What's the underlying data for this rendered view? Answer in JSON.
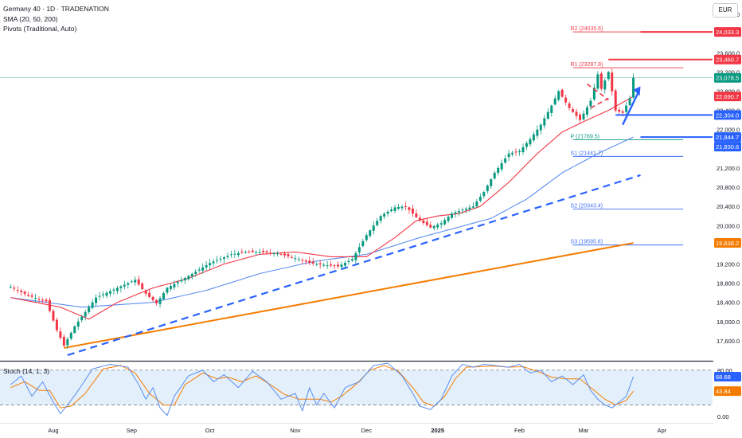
{
  "legend": {
    "symbol": "Germany 40 · 1D · TRADENATION",
    "sma": "SMA (20, 50, 200)",
    "pivots": "Pivots (Traditional, Auto)"
  },
  "currency_button": "EUR",
  "colors": {
    "up": "#089981",
    "down": "#f23645",
    "sma20": "#f23645",
    "sma50": "#5b8def",
    "sma200": "#f57c00",
    "trend": "#2962ff",
    "pivot_blue": "#3d6ef5",
    "stoch_k": "#5b8def",
    "stoch_d": "#f57c00",
    "stoch_band": "#e3f0fb"
  },
  "chart_data": [
    {
      "type": "candlestick",
      "title": "",
      "ylim": [
        17200,
        24700
      ],
      "x_ticks": [
        "Aug",
        "Sep",
        "Oct",
        "Nov",
        "Dec",
        "2025",
        "Feb",
        "Mar",
        "Apr"
      ],
      "x_tick_index": [
        12,
        34,
        56,
        80,
        100,
        120,
        143,
        161,
        183
      ],
      "y_ticks": [
        17600,
        18000,
        18400,
        18800,
        19200,
        19600,
        20000,
        20400,
        20800,
        21200,
        21600,
        22000,
        22400,
        22800,
        23200,
        23600,
        24000,
        24400
      ],
      "y_tick_labels": [
        "17,600.0",
        "18,000.0",
        "18,400.0",
        "18,800.0",
        "19,200.0",
        "19,600.0",
        "20,000.0",
        "20,400.0",
        "20,800.0",
        "21,200.0",
        "21,600.0",
        "22,000.0",
        "22,400.0",
        "22,800.0",
        "23,200.0",
        "23,600.0",
        "24,000.0",
        "24,400.0"
      ],
      "anchors": [
        [
          0,
          18720
        ],
        [
          5,
          18540
        ],
        [
          10,
          18420
        ],
        [
          13,
          17820
        ],
        [
          15,
          17500
        ],
        [
          18,
          17900
        ],
        [
          24,
          18500
        ],
        [
          30,
          18700
        ],
        [
          35,
          18870
        ],
        [
          38,
          18580
        ],
        [
          41,
          18380
        ],
        [
          44,
          18700
        ],
        [
          50,
          18950
        ],
        [
          56,
          19220
        ],
        [
          62,
          19400
        ],
        [
          66,
          19450
        ],
        [
          70,
          19450
        ],
        [
          75,
          19420
        ],
        [
          80,
          19320
        ],
        [
          84,
          19220
        ],
        [
          88,
          19180
        ],
        [
          92,
          19150
        ],
        [
          96,
          19300
        ],
        [
          100,
          19800
        ],
        [
          104,
          20200
        ],
        [
          108,
          20380
        ],
        [
          111,
          20400
        ],
        [
          115,
          20100
        ],
        [
          118,
          19960
        ],
        [
          121,
          20050
        ],
        [
          124,
          20250
        ],
        [
          127,
          20330
        ],
        [
          130,
          20400
        ],
        [
          133,
          20700
        ],
        [
          136,
          21100
        ],
        [
          140,
          21500
        ],
        [
          143,
          21550
        ],
        [
          146,
          21800
        ],
        [
          149,
          22100
        ],
        [
          152,
          22500
        ],
        [
          154,
          22800
        ],
        [
          157,
          22450
        ],
        [
          160,
          22200
        ],
        [
          163,
          22600
        ],
        [
          165,
          23150
        ],
        [
          166,
          22850
        ],
        [
          168,
          23200
        ],
        [
          170,
          22400
        ],
        [
          172,
          22350
        ],
        [
          174,
          22650
        ],
        [
          175,
          23080
        ]
      ],
      "last_index": 175,
      "sma20_anchors": [
        [
          0,
          18500
        ],
        [
          14,
          18300
        ],
        [
          22,
          18050
        ],
        [
          30,
          18400
        ],
        [
          40,
          18700
        ],
        [
          50,
          18900
        ],
        [
          60,
          19200
        ],
        [
          70,
          19400
        ],
        [
          80,
          19450
        ],
        [
          90,
          19350
        ],
        [
          100,
          19350
        ],
        [
          108,
          19750
        ],
        [
          114,
          20100
        ],
        [
          120,
          20200
        ],
        [
          126,
          20250
        ],
        [
          132,
          20400
        ],
        [
          140,
          20900
        ],
        [
          148,
          21500
        ],
        [
          155,
          21950
        ],
        [
          162,
          22200
        ],
        [
          168,
          22400
        ],
        [
          175,
          22690
        ]
      ],
      "sma50_anchors": [
        [
          0,
          18500
        ],
        [
          20,
          18300
        ],
        [
          40,
          18400
        ],
        [
          55,
          18650
        ],
        [
          70,
          19000
        ],
        [
          85,
          19250
        ],
        [
          100,
          19400
        ],
        [
          115,
          19750
        ],
        [
          125,
          19950
        ],
        [
          135,
          20150
        ],
        [
          145,
          20550
        ],
        [
          155,
          21100
        ],
        [
          165,
          21500
        ],
        [
          175,
          21844.7
        ]
      ],
      "sma200": {
        "start": [
          15,
          17450
        ],
        "end": [
          175,
          19638.2
        ]
      },
      "trendline": {
        "start": [
          16,
          17300
        ],
        "end": [
          177,
          21050
        ]
      },
      "pivots": {
        "start_index": 158,
        "end_index": 189,
        "levels": [
          {
            "name": "R2",
            "label": "R2 (24035.6)",
            "value": 24035.6,
            "color": "#f23645"
          },
          {
            "name": "R1",
            "label": "R1 (23287.8)",
            "value": 23287.8,
            "color": "#f23645"
          },
          {
            "name": "P",
            "label": "P (21789.5)",
            "value": 21789.5,
            "color": "#089981"
          },
          {
            "name": "S1",
            "label": "S1 (21441.7)",
            "value": 21441.7,
            "color": "#3d6ef5"
          },
          {
            "name": "S2",
            "label": "S2 (20343.4)",
            "value": 20343.4,
            "color": "#3d6ef5"
          },
          {
            "name": "S3",
            "label": "S3 (19595.6)",
            "value": 19595.6,
            "color": "#3d6ef5"
          }
        ]
      },
      "horizontal_lines": [
        {
          "value": 24033.3,
          "color": "#f23645",
          "start_index": 177
        },
        {
          "value": 23460.7,
          "color": "#f23645",
          "start_index": 168
        },
        {
          "value": 22304.0,
          "color": "#2962ff",
          "start_index": 170
        },
        {
          "value": 21844.7,
          "color": "#2962ff",
          "start_index": 177
        }
      ],
      "current_price_line": 23078.5,
      "price_labels": [
        {
          "text": "24,033.3",
          "value": 24033.3,
          "color": "#f23645"
        },
        {
          "text": "23,460.7",
          "value": 23460.7,
          "color": "#f23645"
        },
        {
          "text": "23,078.5",
          "value": 23078.5,
          "color": "#089981"
        },
        {
          "text": "22,690.7",
          "value": 22690.7,
          "color": "#f23645"
        },
        {
          "text": "22,304.0",
          "value": 22304.0,
          "color": "#2962ff"
        },
        {
          "text": "21,844.7",
          "value": 21844.7,
          "color": "#2962ff"
        },
        {
          "text": "21,830.6",
          "value": 21830.6,
          "color": "#2962ff"
        },
        {
          "text": "19,638.2",
          "value": 19638.2,
          "color": "#f57c00"
        }
      ],
      "pattern": {
        "upper": [
          [
            162,
            22950
          ],
          [
            168,
            22620
          ]
        ],
        "lower": [
          [
            163,
            22450
          ],
          [
            168,
            22650
          ]
        ],
        "arrow_from": [
          172,
          22100
        ],
        "arrow_to": [
          177,
          22900
        ]
      }
    },
    {
      "type": "line",
      "title": "Stoch (14, 1, 3)",
      "ylim": [
        -8,
        92
      ],
      "y_ticks": [
        0,
        80
      ],
      "y_tick_labels": [
        "0.00",
        "80.00"
      ],
      "band": [
        20,
        80
      ],
      "k_anchors": [
        [
          0,
          55
        ],
        [
          3,
          70
        ],
        [
          6,
          35
        ],
        [
          9,
          60
        ],
        [
          12,
          25
        ],
        [
          14,
          5
        ],
        [
          16,
          20
        ],
        [
          19,
          45
        ],
        [
          23,
          82
        ],
        [
          28,
          90
        ],
        [
          33,
          85
        ],
        [
          36,
          55
        ],
        [
          38,
          30
        ],
        [
          40,
          50
        ],
        [
          42,
          15
        ],
        [
          44,
          2
        ],
        [
          46,
          35
        ],
        [
          50,
          70
        ],
        [
          54,
          80
        ],
        [
          57,
          60
        ],
        [
          60,
          72
        ],
        [
          64,
          50
        ],
        [
          68,
          78
        ],
        [
          72,
          60
        ],
        [
          76,
          30
        ],
        [
          80,
          40
        ],
        [
          82,
          10
        ],
        [
          84,
          50
        ],
        [
          86,
          20
        ],
        [
          88,
          40
        ],
        [
          91,
          15
        ],
        [
          94,
          50
        ],
        [
          98,
          60
        ],
        [
          102,
          88
        ],
        [
          106,
          92
        ],
        [
          110,
          70
        ],
        [
          113,
          40
        ],
        [
          115,
          18
        ],
        [
          118,
          12
        ],
        [
          121,
          30
        ],
        [
          124,
          70
        ],
        [
          127,
          90
        ],
        [
          130,
          85
        ],
        [
          133,
          90
        ],
        [
          136,
          88
        ],
        [
          140,
          85
        ],
        [
          143,
          90
        ],
        [
          146,
          75
        ],
        [
          149,
          80
        ],
        [
          152,
          60
        ],
        [
          155,
          70
        ],
        [
          158,
          55
        ],
        [
          161,
          72
        ],
        [
          163,
          45
        ],
        [
          165,
          30
        ],
        [
          167,
          20
        ],
        [
          169,
          15
        ],
        [
          171,
          25
        ],
        [
          173,
          35
        ],
        [
          175,
          68.68
        ]
      ],
      "d_anchors": [
        [
          0,
          50
        ],
        [
          4,
          60
        ],
        [
          8,
          45
        ],
        [
          11,
          45
        ],
        [
          14,
          15
        ],
        [
          17,
          18
        ],
        [
          21,
          40
        ],
        [
          26,
          82
        ],
        [
          31,
          88
        ],
        [
          35,
          75
        ],
        [
          39,
          40
        ],
        [
          43,
          20
        ],
        [
          46,
          20
        ],
        [
          49,
          55
        ],
        [
          54,
          75
        ],
        [
          58,
          65
        ],
        [
          61,
          68
        ],
        [
          65,
          60
        ],
        [
          69,
          70
        ],
        [
          73,
          55
        ],
        [
          77,
          38
        ],
        [
          81,
          30
        ],
        [
          84,
          30
        ],
        [
          87,
          30
        ],
        [
          90,
          25
        ],
        [
          93,
          35
        ],
        [
          97,
          55
        ],
        [
          101,
          80
        ],
        [
          105,
          88
        ],
        [
          109,
          78
        ],
        [
          113,
          50
        ],
        [
          116,
          25
        ],
        [
          119,
          18
        ],
        [
          122,
          35
        ],
        [
          125,
          65
        ],
        [
          128,
          85
        ],
        [
          132,
          86
        ],
        [
          136,
          87
        ],
        [
          140,
          85
        ],
        [
          144,
          86
        ],
        [
          148,
          78
        ],
        [
          152,
          68
        ],
        [
          156,
          65
        ],
        [
          160,
          65
        ],
        [
          164,
          45
        ],
        [
          167,
          30
        ],
        [
          170,
          20
        ],
        [
          173,
          28
        ],
        [
          175,
          43.84
        ]
      ],
      "value_labels": [
        {
          "text": "68.68",
          "value": 68.68,
          "color": "#2962ff"
        },
        {
          "text": "43.84",
          "value": 43.84,
          "color": "#f57c00"
        }
      ]
    }
  ]
}
